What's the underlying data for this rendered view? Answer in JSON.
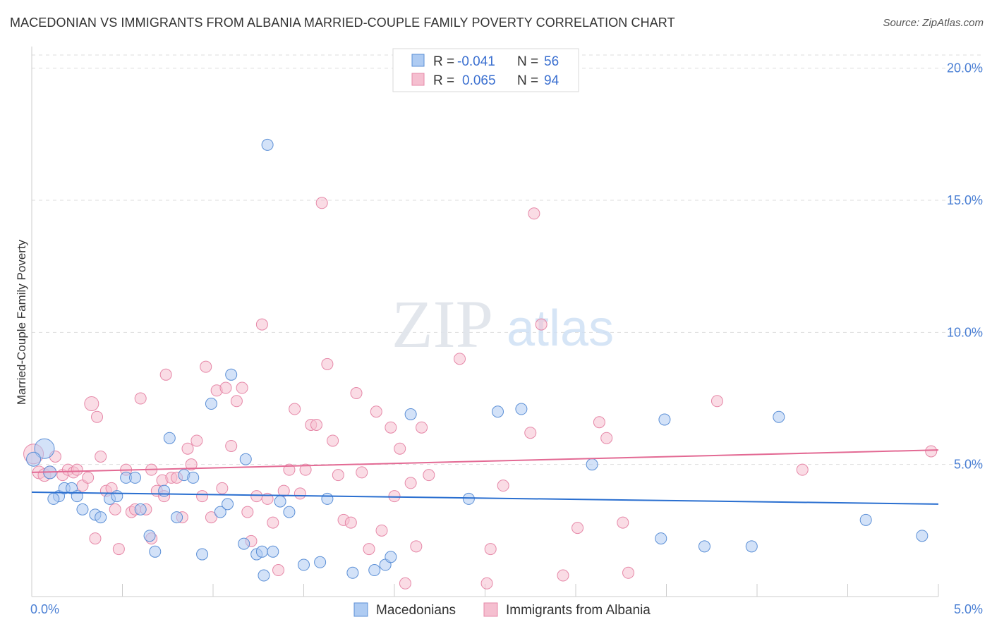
{
  "title": "MACEDONIAN VS IMMIGRANTS FROM ALBANIA MARRIED-COUPLE FAMILY POVERTY CORRELATION CHART",
  "source": "Source: ZipAtlas.com",
  "watermark": {
    "zip": "ZIP",
    "atlas": "atlas"
  },
  "colors": {
    "blue_fill": "#aecbf2",
    "blue_stroke": "#5b8fd6",
    "blue_line": "#2a6fd0",
    "pink_fill": "#f5bfd0",
    "pink_stroke": "#e688a8",
    "pink_line": "#e36a94",
    "grid": "#dddddd",
    "axis": "#cccccc"
  },
  "legend": {
    "rows": [
      {
        "r_label": "R = ",
        "r_value": "-0.041",
        "n_label": "N = ",
        "n_value": "56",
        "series": "blue"
      },
      {
        "r_label": "R = ",
        "r_value": "0.065",
        "n_label": "N = ",
        "n_value": "94",
        "series": "pink"
      }
    ]
  },
  "chart_data": {
    "type": "scatter",
    "title": "MACEDONIAN VS IMMIGRANTS FROM ALBANIA MARRIED-COUPLE FAMILY POVERTY CORRELATION CHART",
    "ylabel": "Married-Couple Family Poverty",
    "xlabel": "",
    "xlim": [
      0,
      5.0
    ],
    "ylim": [
      0,
      20.5
    ],
    "x_tick_labels": [
      {
        "v": 0,
        "label": "0.0%"
      },
      {
        "v": 5.0,
        "label": "5.0%"
      }
    ],
    "y_tick_labels": [
      {
        "v": 5,
        "label": "5.0%"
      },
      {
        "v": 10,
        "label": "10.0%"
      },
      {
        "v": 15,
        "label": "15.0%"
      },
      {
        "v": 20,
        "label": "20.0%"
      }
    ],
    "x_minor_ticks": [
      0.5,
      1.0,
      1.5,
      2.0,
      2.5,
      3.0,
      3.5,
      4.0,
      4.5,
      5.0
    ],
    "series": [
      {
        "name": "Macedonians",
        "color": "blue",
        "trend": {
          "x0": 0,
          "y0": 3.95,
          "x1": 5.0,
          "y1": 3.5
        },
        "points": [
          [
            0.07,
            5.6,
            14
          ],
          [
            0.1,
            4.7,
            9
          ],
          [
            0.15,
            3.8,
            8
          ],
          [
            0.18,
            4.1,
            8
          ],
          [
            0.22,
            4.1,
            8
          ],
          [
            0.25,
            3.8,
            8
          ],
          [
            0.28,
            3.3,
            8
          ],
          [
            0.35,
            3.1,
            8
          ],
          [
            0.38,
            3.0,
            8
          ],
          [
            0.43,
            3.7,
            8
          ],
          [
            0.47,
            3.8,
            8
          ],
          [
            0.52,
            4.5,
            8
          ],
          [
            0.57,
            4.5,
            8
          ],
          [
            0.6,
            3.3,
            8
          ],
          [
            0.65,
            2.3,
            8
          ],
          [
            0.68,
            1.7,
            8
          ],
          [
            0.73,
            4.0,
            8
          ],
          [
            0.76,
            6.0,
            8
          ],
          [
            0.8,
            3.0,
            8
          ],
          [
            0.84,
            4.6,
            8
          ],
          [
            0.89,
            4.5,
            8
          ],
          [
            0.94,
            1.6,
            8
          ],
          [
            0.99,
            7.3,
            8
          ],
          [
            1.04,
            3.2,
            8
          ],
          [
            1.08,
            3.5,
            8
          ],
          [
            1.1,
            8.4,
            8
          ],
          [
            1.17,
            2.0,
            8
          ],
          [
            1.18,
            5.2,
            8
          ],
          [
            1.24,
            1.6,
            8
          ],
          [
            1.27,
            1.7,
            8
          ],
          [
            1.28,
            0.8,
            8
          ],
          [
            1.3,
            17.1,
            8
          ],
          [
            1.33,
            1.7,
            8
          ],
          [
            1.37,
            3.6,
            8
          ],
          [
            1.42,
            3.2,
            8
          ],
          [
            1.5,
            1.2,
            8
          ],
          [
            1.59,
            1.3,
            8
          ],
          [
            1.63,
            3.7,
            8
          ],
          [
            1.77,
            0.9,
            8
          ],
          [
            1.89,
            1.0,
            8
          ],
          [
            1.95,
            1.2,
            8
          ],
          [
            1.98,
            1.5,
            8
          ],
          [
            2.09,
            6.9,
            8
          ],
          [
            2.41,
            3.7,
            8
          ],
          [
            2.57,
            7.0,
            8
          ],
          [
            2.7,
            7.1,
            8
          ],
          [
            3.09,
            5.0,
            8
          ],
          [
            3.49,
            6.7,
            8
          ],
          [
            3.47,
            2.2,
            8
          ],
          [
            3.71,
            1.9,
            8
          ],
          [
            3.97,
            1.9,
            8
          ],
          [
            4.12,
            6.8,
            8
          ],
          [
            4.6,
            2.9,
            8
          ],
          [
            4.91,
            2.3,
            8
          ],
          [
            0.01,
            5.2,
            10
          ],
          [
            0.12,
            3.7,
            8
          ]
        ]
      },
      {
        "name": "Immigrants from Albania",
        "color": "pink",
        "trend": {
          "x0": 0,
          "y0": 4.7,
          "x1": 5.0,
          "y1": 5.55
        },
        "points": [
          [
            0.01,
            5.4,
            14
          ],
          [
            0.04,
            4.7,
            9
          ],
          [
            0.07,
            4.6,
            9
          ],
          [
            0.1,
            4.7,
            9
          ],
          [
            0.13,
            5.3,
            8
          ],
          [
            0.17,
            4.6,
            8
          ],
          [
            0.2,
            4.8,
            8
          ],
          [
            0.23,
            4.7,
            8
          ],
          [
            0.25,
            4.8,
            8
          ],
          [
            0.28,
            4.2,
            8
          ],
          [
            0.31,
            4.5,
            8
          ],
          [
            0.33,
            7.3,
            10
          ],
          [
            0.35,
            2.2,
            8
          ],
          [
            0.38,
            5.3,
            8
          ],
          [
            0.41,
            4.0,
            8
          ],
          [
            0.44,
            4.1,
            8
          ],
          [
            0.46,
            3.3,
            8
          ],
          [
            0.48,
            1.8,
            8
          ],
          [
            0.52,
            4.8,
            8
          ],
          [
            0.55,
            3.2,
            8
          ],
          [
            0.57,
            3.3,
            8
          ],
          [
            0.6,
            7.5,
            8
          ],
          [
            0.63,
            3.3,
            8
          ],
          [
            0.66,
            2.2,
            8
          ],
          [
            0.69,
            4.0,
            8
          ],
          [
            0.72,
            4.4,
            8
          ],
          [
            0.74,
            8.4,
            8
          ],
          [
            0.77,
            4.5,
            8
          ],
          [
            0.8,
            4.5,
            8
          ],
          [
            0.83,
            3.0,
            8
          ],
          [
            0.86,
            5.6,
            8
          ],
          [
            0.88,
            5.0,
            8
          ],
          [
            0.91,
            5.9,
            8
          ],
          [
            0.94,
            3.8,
            8
          ],
          [
            0.96,
            8.7,
            8
          ],
          [
            0.99,
            3.0,
            8
          ],
          [
            1.02,
            7.8,
            8
          ],
          [
            1.05,
            4.1,
            8
          ],
          [
            1.07,
            7.9,
            8
          ],
          [
            1.1,
            5.7,
            8
          ],
          [
            1.13,
            7.4,
            8
          ],
          [
            1.16,
            7.9,
            8
          ],
          [
            1.19,
            3.2,
            8
          ],
          [
            1.21,
            2.1,
            8
          ],
          [
            1.24,
            3.8,
            8
          ],
          [
            1.27,
            10.3,
            8
          ],
          [
            1.3,
            3.7,
            8
          ],
          [
            1.33,
            2.8,
            8
          ],
          [
            1.36,
            1.0,
            8
          ],
          [
            1.39,
            4.0,
            8
          ],
          [
            1.42,
            4.8,
            8
          ],
          [
            1.45,
            7.1,
            8
          ],
          [
            1.48,
            3.9,
            8
          ],
          [
            1.51,
            4.8,
            8
          ],
          [
            1.54,
            6.5,
            8
          ],
          [
            1.57,
            6.5,
            8
          ],
          [
            1.6,
            14.9,
            8
          ],
          [
            1.63,
            8.8,
            8
          ],
          [
            1.66,
            5.9,
            8
          ],
          [
            1.69,
            4.6,
            8
          ],
          [
            1.72,
            2.9,
            8
          ],
          [
            1.76,
            2.8,
            8
          ],
          [
            1.79,
            7.7,
            8
          ],
          [
            1.82,
            4.7,
            8
          ],
          [
            1.86,
            1.8,
            8
          ],
          [
            1.9,
            7.0,
            8
          ],
          [
            1.93,
            2.5,
            8
          ],
          [
            1.98,
            6.4,
            8
          ],
          [
            2.0,
            3.8,
            8
          ],
          [
            2.03,
            5.6,
            8
          ],
          [
            2.06,
            0.5,
            8
          ],
          [
            2.09,
            4.3,
            8
          ],
          [
            2.12,
            1.9,
            8
          ],
          [
            2.15,
            6.4,
            8
          ],
          [
            2.19,
            4.6,
            8
          ],
          [
            2.36,
            9.0,
            8
          ],
          [
            2.51,
            0.5,
            8
          ],
          [
            2.6,
            4.2,
            8
          ],
          [
            2.75,
            6.2,
            8
          ],
          [
            2.77,
            14.5,
            8
          ],
          [
            2.81,
            10.3,
            8
          ],
          [
            2.93,
            0.8,
            8
          ],
          [
            3.01,
            2.6,
            8
          ],
          [
            3.13,
            6.6,
            8
          ],
          [
            3.17,
            6.0,
            8
          ],
          [
            3.26,
            2.8,
            8
          ],
          [
            3.29,
            0.9,
            8
          ],
          [
            3.78,
            7.4,
            8
          ],
          [
            4.25,
            4.8,
            8
          ],
          [
            4.96,
            5.5,
            8
          ],
          [
            2.53,
            1.8,
            8
          ],
          [
            0.73,
            3.8,
            8
          ],
          [
            0.36,
            6.8,
            8
          ],
          [
            0.66,
            4.8,
            8
          ]
        ]
      }
    ]
  }
}
